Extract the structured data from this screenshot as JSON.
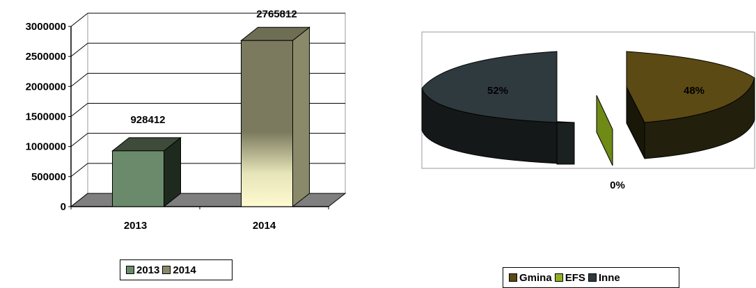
{
  "chart_data": [
    {
      "type": "bar",
      "categories": [
        "2013",
        "2014"
      ],
      "values": [
        928412,
        2765812
      ],
      "value_labels": [
        "928412",
        "2765812"
      ],
      "ylim": [
        0,
        3000000
      ],
      "yticks": [
        "0",
        "500000",
        "1000000",
        "1500000",
        "2000000",
        "2500000",
        "3000000"
      ],
      "grid": true,
      "legend": {
        "placement": "bottom",
        "entries": [
          "2013",
          "2014"
        ]
      },
      "colors": {
        "2013": "#6b8a6b",
        "2014": "#8a8a6b"
      },
      "title": "",
      "xlabel": "",
      "ylabel": ""
    },
    {
      "type": "pie",
      "labels": [
        "Gmina",
        "EFS",
        "Inne"
      ],
      "values": [
        48,
        0,
        52
      ],
      "value_labels": [
        "48%",
        "0%",
        "52%"
      ],
      "legend": {
        "placement": "bottom",
        "entries": [
          "Gmina",
          "EFS",
          "Inne"
        ]
      },
      "colors": {
        "Gmina": "#5c4a14",
        "EFS": "#8fb020",
        "Inne": "#2f3a3e"
      },
      "title": ""
    }
  ]
}
